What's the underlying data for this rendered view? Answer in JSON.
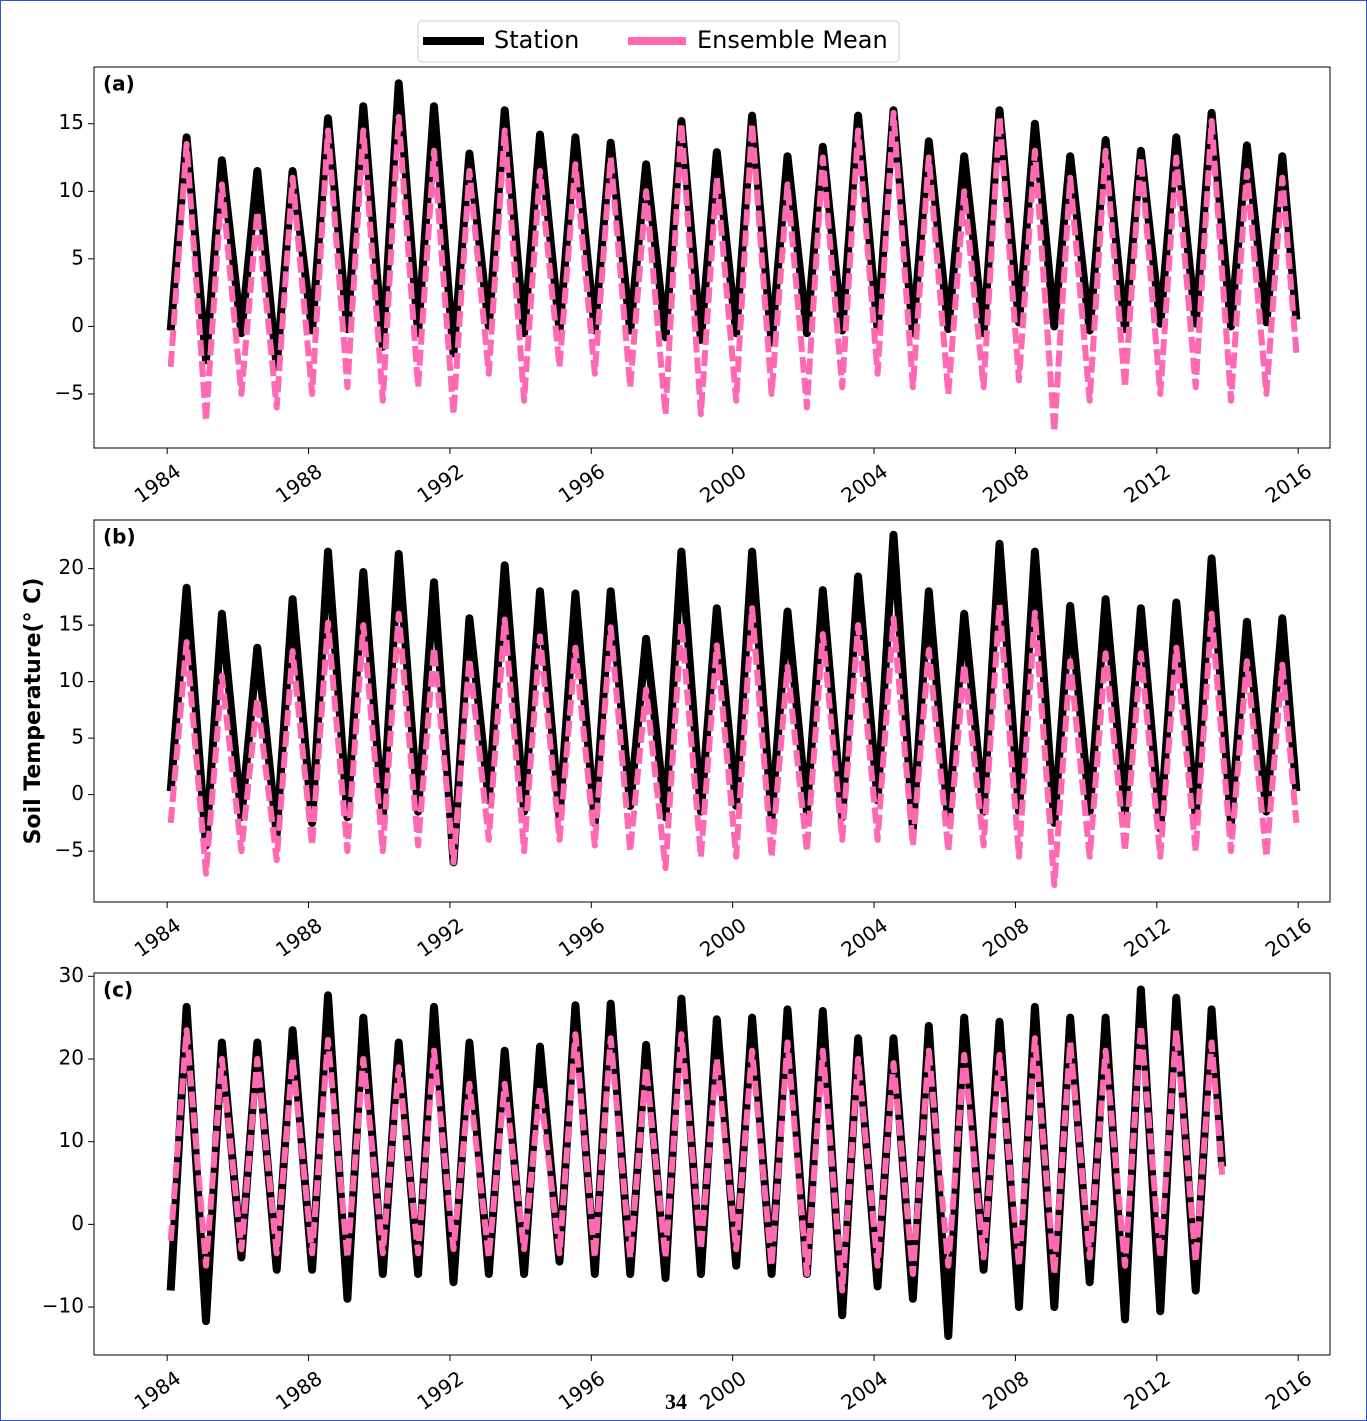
{
  "chart_data": [
    {
      "type": "line",
      "panel_label": "(a)",
      "x": [
        1984.1,
        1984.55,
        1985.1,
        1985.55,
        1986.1,
        1986.55,
        1987.1,
        1987.55,
        1988.1,
        1988.55,
        1989.1,
        1989.55,
        1990.1,
        1990.55,
        1991.1,
        1991.55,
        1992.1,
        1992.55,
        1993.1,
        1993.55,
        1994.1,
        1994.55,
        1995.1,
        1995.55,
        1996.1,
        1996.55,
        1997.1,
        1997.55,
        1998.1,
        1998.55,
        1999.1,
        1999.55,
        2000.1,
        2000.55,
        2001.1,
        2001.55,
        2002.1,
        2002.55,
        2003.1,
        2003.55,
        2004.1,
        2004.55,
        2005.1,
        2005.55,
        2006.1,
        2006.55,
        2007.1,
        2007.55,
        2008.1,
        2008.55,
        2009.1,
        2009.55,
        2010.1,
        2010.55,
        2011.1,
        2011.55,
        2012.1,
        2012.55,
        2013.1,
        2013.55,
        2014.1,
        2014.55,
        2015.1,
        2015.55,
        2015.95
      ],
      "series": [
        {
          "name": "Station",
          "color": "#000000",
          "values": [
            -0.3,
            14,
            -2.5,
            12.3,
            -0.5,
            11.5,
            -3,
            11.5,
            -0.3,
            15.4,
            -0.2,
            16.3,
            -1.5,
            18,
            -0.5,
            16.3,
            -2,
            12.8,
            0,
            16,
            -0.5,
            14.2,
            -0.3,
            14,
            -0.3,
            13.6,
            -0.3,
            12,
            -0.8,
            15.2,
            -1,
            12.9,
            -0.5,
            15.6,
            -1.2,
            12.6,
            -0.5,
            13.3,
            -0.3,
            15.6,
            -0.2,
            16,
            -0.5,
            13.7,
            -0.2,
            12.6,
            -0.5,
            16,
            0.3,
            15,
            0,
            12.6,
            -0.3,
            13.8,
            -0.2,
            13,
            0.2,
            14,
            0.2,
            15.8,
            0,
            13.4,
            0.3,
            12.6,
            0.5
          ]
        },
        {
          "name": "Ensemble Mean",
          "color": "#ff69b4",
          "values": [
            -3,
            13.5,
            -7,
            10.5,
            -5,
            8.5,
            -6,
            11,
            -5,
            14.5,
            -4.5,
            14.5,
            -5.5,
            15.5,
            -4.5,
            13,
            -6.5,
            11.5,
            -3.5,
            14.5,
            -5.5,
            11.5,
            -3,
            12,
            -3.5,
            12.5,
            -4.5,
            10,
            -6.5,
            15,
            -6.5,
            11,
            -5.5,
            15,
            -5,
            10.5,
            -6,
            12.5,
            -4.5,
            14.5,
            -3.5,
            15.8,
            -4.5,
            12.5,
            -5,
            10,
            -4.5,
            15.5,
            -4,
            13,
            -7.8,
            11,
            -5.5,
            13,
            -4.5,
            12.5,
            -5,
            12.5,
            -4.5,
            15.2,
            -5.5,
            11.5,
            -5,
            11,
            -2
          ]
        }
      ],
      "xlim": [
        1981.93,
        2016.9
      ],
      "xticks": [
        1984,
        1988,
        1992,
        1996,
        2000,
        2004,
        2008,
        2012,
        2016
      ],
      "ylim": [
        -9,
        19.2
      ],
      "yticks": [
        {
          "value": -5,
          "label": "−5"
        },
        0,
        5,
        10,
        15
      ]
    },
    {
      "type": "line",
      "panel_label": "(b)",
      "ylabel": "Soil Temperature(° C)",
      "x": [
        1984.1,
        1984.55,
        1985.1,
        1985.55,
        1986.1,
        1986.55,
        1987.1,
        1987.55,
        1988.1,
        1988.55,
        1989.1,
        1989.55,
        1990.1,
        1990.55,
        1991.1,
        1991.55,
        1992.1,
        1992.55,
        1993.1,
        1993.55,
        1994.1,
        1994.55,
        1995.1,
        1995.55,
        1996.1,
        1996.55,
        1997.1,
        1997.55,
        1998.1,
        1998.55,
        1999.1,
        1999.55,
        2000.1,
        2000.55,
        2001.1,
        2001.55,
        2002.1,
        2002.55,
        2003.1,
        2003.55,
        2004.1,
        2004.55,
        2005.1,
        2005.55,
        2006.1,
        2006.55,
        2007.1,
        2007.55,
        2008.1,
        2008.55,
        2009.1,
        2009.55,
        2010.1,
        2010.55,
        2011.1,
        2011.55,
        2012.1,
        2012.55,
        2013.1,
        2013.55,
        2014.1,
        2014.55,
        2015.1,
        2015.55,
        2015.95
      ],
      "series": [
        {
          "color": "#000000",
          "values": [
            0.3,
            18.3,
            -4.5,
            16,
            -2,
            13,
            -3.5,
            17.3,
            -2.5,
            21.5,
            -2,
            19.7,
            -2,
            21.3,
            -1.5,
            18.8,
            -6,
            15.6,
            -0.5,
            20.3,
            -1.5,
            18,
            -2,
            17.8,
            -2.5,
            18,
            -1,
            13.8,
            -2,
            21.5,
            -1.5,
            16.5,
            -1,
            21.5,
            -2,
            16.2,
            -1.5,
            18.1,
            -2,
            19.3,
            -0.5,
            23,
            -3,
            18,
            -2.5,
            16,
            -1.5,
            22.2,
            -1.5,
            21.5,
            -2.5,
            16.7,
            -1.5,
            17.3,
            -1.5,
            16.5,
            -3,
            17,
            -2,
            20.9,
            -2.5,
            15.3,
            -1.5,
            15.6,
            0.3
          ]
        },
        {
          "color": "#ff69b4",
          "values": [
            -2.5,
            13.5,
            -7,
            10.5,
            -5,
            8.5,
            -5.8,
            12.7,
            -4.5,
            15.2,
            -5,
            15,
            -5,
            16,
            -4.5,
            13,
            -6,
            12,
            -4,
            15.5,
            -5,
            14,
            -4,
            13,
            -4.5,
            14.8,
            -5,
            9.3,
            -6.5,
            15.2,
            -5.5,
            13.2,
            -5.5,
            16.5,
            -5.5,
            11.3,
            -5,
            14.2,
            -4,
            15,
            -4,
            15.6,
            -4.5,
            12.8,
            -5,
            11.5,
            -4.5,
            16.8,
            -5.5,
            16.1,
            -8,
            11.8,
            -5.5,
            12.5,
            -5,
            12.5,
            -5.5,
            13,
            -5,
            16,
            -5,
            11.8,
            -5.5,
            11.5,
            -2.5
          ]
        }
      ],
      "xlim": [
        1981.93,
        2016.9
      ],
      "xticks": [
        1984,
        1988,
        1992,
        1996,
        2000,
        2004,
        2008,
        2012,
        2016
      ],
      "ylim": [
        -9.5,
        24.3
      ],
      "yticks": [
        {
          "value": -5,
          "label": "−5"
        },
        0,
        5,
        10,
        15,
        20
      ]
    },
    {
      "type": "line",
      "panel_label": "(c)",
      "x": [
        1984.1,
        1984.55,
        1985.1,
        1985.55,
        1986.1,
        1986.55,
        1987.1,
        1987.55,
        1988.1,
        1988.55,
        1989.1,
        1989.55,
        1990.1,
        1990.55,
        1991.1,
        1991.55,
        1992.1,
        1992.55,
        1993.1,
        1993.55,
        1994.1,
        1994.55,
        1995.1,
        1995.55,
        1996.1,
        1996.55,
        1997.1,
        1997.55,
        1998.1,
        1998.55,
        1999.1,
        1999.55,
        2000.1,
        2000.55,
        2001.1,
        2001.55,
        2002.1,
        2002.55,
        2003.1,
        2003.55,
        2004.1,
        2004.55,
        2005.1,
        2005.55,
        2006.1,
        2006.55,
        2007.1,
        2007.55,
        2008.1,
        2008.55,
        2009.1,
        2009.55,
        2010.1,
        2010.55,
        2011.1,
        2011.55,
        2012.1,
        2012.55,
        2013.1,
        2013.55,
        2013.85
      ],
      "series": [
        {
          "color": "#000000",
          "values": [
            -8,
            26.3,
            -11.7,
            22,
            -4,
            22,
            -5.5,
            23.5,
            -5.5,
            27.7,
            -9,
            25,
            -6,
            22,
            -6,
            26.3,
            -7,
            22,
            -6,
            21,
            -6,
            21.5,
            -4.5,
            26.5,
            -6,
            26.7,
            -6,
            21.7,
            -6.5,
            27.3,
            -6,
            24.8,
            -5,
            25,
            -6,
            26,
            -6,
            25.8,
            -11,
            22.5,
            -7.5,
            22.5,
            -9,
            24,
            -13.5,
            25,
            -5.5,
            24.5,
            -10,
            26.3,
            -10,
            25,
            -7,
            25,
            -11.5,
            28.4,
            -10.5,
            27.4,
            -8,
            26,
            7
          ]
        },
        {
          "color": "#ff69b4",
          "values": [
            -2,
            23.5,
            -5,
            20,
            -3,
            20,
            -3.5,
            20,
            -3.5,
            22.3,
            -4,
            20,
            -3.5,
            19,
            -3.5,
            21,
            -3,
            17,
            -4,
            17,
            -3,
            16.5,
            -3.5,
            23,
            -4,
            22.5,
            -4,
            19,
            -4,
            23,
            -3,
            20,
            -3,
            21,
            -5,
            22,
            -6,
            21,
            -8,
            20,
            -5,
            19.5,
            -6,
            21,
            -5,
            20.5,
            -4,
            20.5,
            -5,
            22.5,
            -6,
            22,
            -4,
            21,
            -5,
            24,
            -4,
            23.5,
            -4.5,
            22,
            6
          ]
        }
      ],
      "xlim": [
        1981.93,
        2016.9
      ],
      "xticks": [
        1984,
        1988,
        1992,
        1996,
        2000,
        2004,
        2008,
        2012,
        2016
      ],
      "ylim": [
        -15.8,
        30.4
      ],
      "yticks": [
        {
          "value": -10,
          "label": "−10"
        },
        0,
        10,
        20,
        30
      ]
    }
  ],
  "page_number": "34"
}
